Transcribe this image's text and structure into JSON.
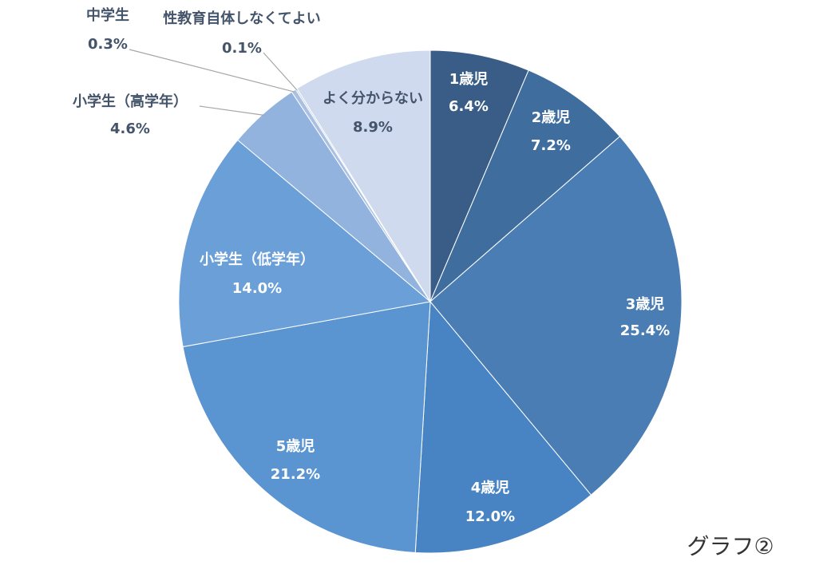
{
  "chart_data": {
    "type": "pie",
    "categories": [
      "1歳児",
      "2歳児",
      "3歳児",
      "4歳児",
      "5歳児",
      "小学生（低学年）",
      "小学生（高学年）",
      "中学生",
      "性教育自体しなくてよい",
      "よく分からない"
    ],
    "values": [
      6.4,
      7.2,
      25.4,
      12.0,
      21.2,
      14.0,
      4.6,
      0.3,
      0.1,
      8.9
    ],
    "value_labels": [
      "6.4%",
      "7.2%",
      "25.4%",
      "12.0%",
      "21.2%",
      "14.0%",
      "4.6%",
      "0.3%",
      "0.1%",
      "8.9%"
    ],
    "colors": [
      "#395d87",
      "#3e6d9e",
      "#4a7db3",
      "#4884c3",
      "#5a94d1",
      "#6b9fd8",
      "#92b3dd",
      "#a9c0e2",
      "#bccde8",
      "#cfdaee"
    ],
    "annotation": "グラフ②"
  }
}
